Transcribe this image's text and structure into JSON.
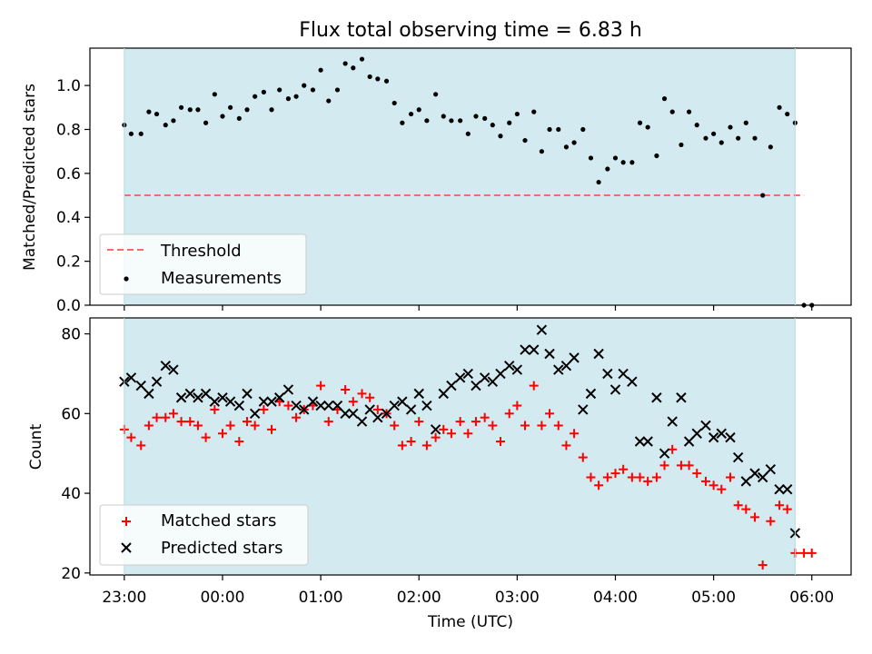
{
  "figure": {
    "title": "Flux total observing time = 6.83 h"
  },
  "chart_data": [
    {
      "type": "scatter",
      "panel": "top",
      "title": "Flux total observing time = 6.83 h",
      "xlabel": "",
      "ylabel": "Matched/Predicted stars",
      "x_axis": "time (UTC), hours since 23:00",
      "xlim": [
        -0.35,
        7.4
      ],
      "ylim": [
        0.0,
        1.17
      ],
      "y_ticks": [
        0.0,
        0.2,
        0.4,
        0.6,
        0.8,
        1.0
      ],
      "y_tick_labels": [
        "0.0",
        "0.2",
        "0.4",
        "0.6",
        "0.8",
        "1.0"
      ],
      "observing_span": [
        0.0,
        6.83
      ],
      "observing_span_color": "#d3eaf1",
      "legend": {
        "position": "lower-left"
      },
      "threshold": {
        "name": "Threshold",
        "value": 0.5,
        "x_range": [
          0.0,
          6.92
        ],
        "color": "#f46b6b",
        "style": "dashed"
      },
      "series": [
        {
          "name": "Measurements",
          "marker": "dot",
          "color": "#000000",
          "points": [
            [
              0.0,
              0.82
            ],
            [
              0.07,
              0.78
            ],
            [
              0.17,
              0.78
            ],
            [
              0.25,
              0.88
            ],
            [
              0.33,
              0.87
            ],
            [
              0.42,
              0.82
            ],
            [
              0.5,
              0.84
            ],
            [
              0.58,
              0.9
            ],
            [
              0.67,
              0.89
            ],
            [
              0.75,
              0.89
            ],
            [
              0.83,
              0.83
            ],
            [
              0.92,
              0.96
            ],
            [
              1.0,
              0.86
            ],
            [
              1.08,
              0.9
            ],
            [
              1.17,
              0.85
            ],
            [
              1.25,
              0.89
            ],
            [
              1.33,
              0.95
            ],
            [
              1.42,
              0.97
            ],
            [
              1.5,
              0.89
            ],
            [
              1.58,
              0.98
            ],
            [
              1.67,
              0.94
            ],
            [
              1.75,
              0.95
            ],
            [
              1.83,
              1.0
            ],
            [
              1.92,
              0.98
            ],
            [
              2.0,
              1.07
            ],
            [
              2.08,
              0.93
            ],
            [
              2.17,
              0.98
            ],
            [
              2.25,
              1.1
            ],
            [
              2.33,
              1.08
            ],
            [
              2.42,
              1.12
            ],
            [
              2.5,
              1.04
            ],
            [
              2.58,
              1.03
            ],
            [
              2.67,
              1.02
            ],
            [
              2.75,
              0.92
            ],
            [
              2.83,
              0.83
            ],
            [
              2.92,
              0.87
            ],
            [
              3.0,
              0.89
            ],
            [
              3.08,
              0.84
            ],
            [
              3.17,
              0.96
            ],
            [
              3.25,
              0.86
            ],
            [
              3.33,
              0.84
            ],
            [
              3.42,
              0.84
            ],
            [
              3.5,
              0.78
            ],
            [
              3.58,
              0.86
            ],
            [
              3.67,
              0.85
            ],
            [
              3.75,
              0.82
            ],
            [
              3.83,
              0.77
            ],
            [
              3.92,
              0.83
            ],
            [
              4.0,
              0.87
            ],
            [
              4.08,
              0.75
            ],
            [
              4.17,
              0.88
            ],
            [
              4.25,
              0.7
            ],
            [
              4.33,
              0.8
            ],
            [
              4.42,
              0.8
            ],
            [
              4.5,
              0.72
            ],
            [
              4.58,
              0.74
            ],
            [
              4.67,
              0.8
            ],
            [
              4.75,
              0.67
            ],
            [
              4.83,
              0.56
            ],
            [
              4.92,
              0.62
            ],
            [
              5.0,
              0.67
            ],
            [
              5.08,
              0.65
            ],
            [
              5.17,
              0.65
            ],
            [
              5.25,
              0.83
            ],
            [
              5.33,
              0.81
            ],
            [
              5.42,
              0.68
            ],
            [
              5.5,
              0.94
            ],
            [
              5.58,
              0.88
            ],
            [
              5.67,
              0.73
            ],
            [
              5.75,
              0.88
            ],
            [
              5.83,
              0.82
            ],
            [
              5.92,
              0.76
            ],
            [
              6.0,
              0.78
            ],
            [
              6.08,
              0.74
            ],
            [
              6.17,
              0.81
            ],
            [
              6.25,
              0.76
            ],
            [
              6.33,
              0.83
            ],
            [
              6.42,
              0.76
            ],
            [
              6.5,
              0.5
            ],
            [
              6.58,
              0.72
            ],
            [
              6.67,
              0.9
            ],
            [
              6.75,
              0.87
            ],
            [
              6.83,
              0.83
            ],
            [
              6.92,
              0.0
            ],
            [
              7.0,
              0.0
            ]
          ]
        }
      ]
    },
    {
      "type": "scatter",
      "panel": "bottom",
      "xlabel": "Time (UTC)",
      "ylabel": "Count",
      "x_axis": "time (UTC), hours since 23:00",
      "xlim": [
        -0.35,
        7.4
      ],
      "ylim": [
        19.5,
        84
      ],
      "x_ticks": [
        0,
        1,
        2,
        3,
        4,
        5,
        6,
        7
      ],
      "x_tick_labels": [
        "23:00",
        "00:00",
        "01:00",
        "02:00",
        "03:00",
        "04:00",
        "05:00",
        "06:00"
      ],
      "y_ticks": [
        20,
        40,
        60,
        80
      ],
      "y_tick_labels": [
        "20",
        "40",
        "60",
        "80"
      ],
      "observing_span": [
        0.0,
        6.83
      ],
      "observing_span_color": "#d3eaf1",
      "legend": {
        "position": "lower-left"
      },
      "series": [
        {
          "name": "Matched stars",
          "marker": "plus",
          "color": "#ff0000",
          "points": [
            [
              0.0,
              56
            ],
            [
              0.07,
              54
            ],
            [
              0.17,
              52
            ],
            [
              0.25,
              57
            ],
            [
              0.33,
              59
            ],
            [
              0.42,
              59
            ],
            [
              0.5,
              60
            ],
            [
              0.58,
              58
            ],
            [
              0.67,
              58
            ],
            [
              0.75,
              57
            ],
            [
              0.83,
              54
            ],
            [
              0.92,
              61
            ],
            [
              1.0,
              55
            ],
            [
              1.08,
              57
            ],
            [
              1.17,
              53
            ],
            [
              1.25,
              58
            ],
            [
              1.33,
              57
            ],
            [
              1.42,
              61
            ],
            [
              1.5,
              56
            ],
            [
              1.58,
              63
            ],
            [
              1.67,
              62
            ],
            [
              1.75,
              59
            ],
            [
              1.83,
              61
            ],
            [
              1.92,
              62
            ],
            [
              2.0,
              67
            ],
            [
              2.08,
              58
            ],
            [
              2.17,
              61
            ],
            [
              2.25,
              66
            ],
            [
              2.33,
              63
            ],
            [
              2.42,
              65
            ],
            [
              2.5,
              64
            ],
            [
              2.58,
              61
            ],
            [
              2.67,
              60
            ],
            [
              2.75,
              57
            ],
            [
              2.83,
              52
            ],
            [
              2.92,
              53
            ],
            [
              3.0,
              58
            ],
            [
              3.08,
              52
            ],
            [
              3.17,
              54
            ],
            [
              3.25,
              56
            ],
            [
              3.33,
              55
            ],
            [
              3.42,
              58
            ],
            [
              3.5,
              55
            ],
            [
              3.58,
              58
            ],
            [
              3.67,
              59
            ],
            [
              3.75,
              57
            ],
            [
              3.83,
              53
            ],
            [
              3.92,
              60
            ],
            [
              4.0,
              62
            ],
            [
              4.08,
              57
            ],
            [
              4.17,
              67
            ],
            [
              4.25,
              57
            ],
            [
              4.33,
              60
            ],
            [
              4.42,
              57
            ],
            [
              4.5,
              52
            ],
            [
              4.58,
              55
            ],
            [
              4.67,
              49
            ],
            [
              4.75,
              44
            ],
            [
              4.83,
              42
            ],
            [
              4.92,
              44
            ],
            [
              5.0,
              45
            ],
            [
              5.08,
              46
            ],
            [
              5.17,
              44
            ],
            [
              5.25,
              44
            ],
            [
              5.33,
              43
            ],
            [
              5.42,
              44
            ],
            [
              5.5,
              47
            ],
            [
              5.58,
              51
            ],
            [
              5.67,
              47
            ],
            [
              5.75,
              47
            ],
            [
              5.83,
              45
            ],
            [
              5.92,
              43
            ],
            [
              6.0,
              42
            ],
            [
              6.08,
              41
            ],
            [
              6.17,
              44
            ],
            [
              6.25,
              37
            ],
            [
              6.33,
              36
            ],
            [
              6.42,
              34
            ],
            [
              6.5,
              22
            ],
            [
              6.58,
              33
            ],
            [
              6.67,
              37
            ],
            [
              6.75,
              36
            ],
            [
              6.83,
              25
            ],
            [
              6.92,
              25
            ],
            [
              7.0,
              25
            ]
          ]
        },
        {
          "name": "Predicted stars",
          "marker": "x",
          "color": "#000000",
          "points": [
            [
              0.0,
              68
            ],
            [
              0.07,
              69
            ],
            [
              0.17,
              67
            ],
            [
              0.25,
              65
            ],
            [
              0.33,
              68
            ],
            [
              0.42,
              72
            ],
            [
              0.5,
              71
            ],
            [
              0.58,
              64
            ],
            [
              0.67,
              65
            ],
            [
              0.75,
              64
            ],
            [
              0.83,
              65
            ],
            [
              0.92,
              63
            ],
            [
              1.0,
              64
            ],
            [
              1.08,
              63
            ],
            [
              1.17,
              62
            ],
            [
              1.25,
              65
            ],
            [
              1.33,
              60
            ],
            [
              1.42,
              63
            ],
            [
              1.5,
              63
            ],
            [
              1.58,
              64
            ],
            [
              1.67,
              66
            ],
            [
              1.75,
              62
            ],
            [
              1.83,
              61
            ],
            [
              1.92,
              63
            ],
            [
              2.0,
              62
            ],
            [
              2.08,
              62
            ],
            [
              2.17,
              62
            ],
            [
              2.25,
              60
            ],
            [
              2.33,
              60
            ],
            [
              2.42,
              58
            ],
            [
              2.5,
              61
            ],
            [
              2.58,
              59
            ],
            [
              2.67,
              60
            ],
            [
              2.75,
              62
            ],
            [
              2.83,
              63
            ],
            [
              2.92,
              61
            ],
            [
              3.0,
              65
            ],
            [
              3.08,
              62
            ],
            [
              3.17,
              56
            ],
            [
              3.25,
              65
            ],
            [
              3.33,
              67
            ],
            [
              3.42,
              69
            ],
            [
              3.5,
              70
            ],
            [
              3.58,
              67
            ],
            [
              3.67,
              69
            ],
            [
              3.75,
              68
            ],
            [
              3.83,
              70
            ],
            [
              3.92,
              72
            ],
            [
              4.0,
              71
            ],
            [
              4.08,
              76
            ],
            [
              4.17,
              76
            ],
            [
              4.25,
              81
            ],
            [
              4.33,
              75
            ],
            [
              4.42,
              71
            ],
            [
              4.5,
              72
            ],
            [
              4.58,
              74
            ],
            [
              4.67,
              61
            ],
            [
              4.75,
              65
            ],
            [
              4.83,
              75
            ],
            [
              4.92,
              70
            ],
            [
              5.0,
              66
            ],
            [
              5.08,
              70
            ],
            [
              5.17,
              68
            ],
            [
              5.25,
              53
            ],
            [
              5.33,
              53
            ],
            [
              5.42,
              64
            ],
            [
              5.5,
              50
            ],
            [
              5.58,
              58
            ],
            [
              5.67,
              64
            ],
            [
              5.75,
              53
            ],
            [
              5.83,
              55
            ],
            [
              5.92,
              57
            ],
            [
              6.0,
              54
            ],
            [
              6.08,
              55
            ],
            [
              6.17,
              54
            ],
            [
              6.25,
              49
            ],
            [
              6.33,
              43
            ],
            [
              6.42,
              45
            ],
            [
              6.5,
              44
            ],
            [
              6.58,
              46
            ],
            [
              6.67,
              41
            ],
            [
              6.75,
              41
            ],
            [
              6.83,
              30
            ]
          ]
        }
      ]
    }
  ]
}
